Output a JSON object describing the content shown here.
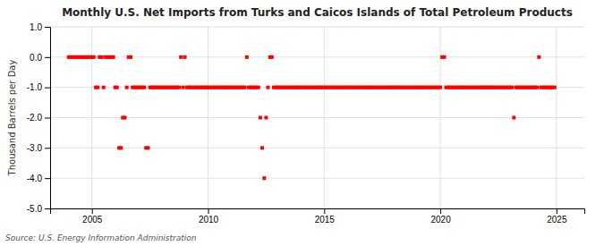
{
  "chart_data": {
    "type": "scatter",
    "title": "Monthly U.S. Net Imports from Turks and Caicos Islands of Total Petroleum Products",
    "ylabel": "Thousand Barrels per Day",
    "annotation": "Source: U.S. Energy Information Administration",
    "color": "#ff0000",
    "marker": "square",
    "grid": true,
    "xlim": [
      2003.2,
      2026.2
    ],
    "ylim": [
      -5.0,
      1.0
    ],
    "xticks": [
      2005,
      2010,
      2015,
      2020,
      2025
    ],
    "yticks": [
      {
        "value": 1.0,
        "label": "1.0"
      },
      {
        "value": 0.0,
        "label": "0.0"
      },
      {
        "value": -1.0,
        "label": "-1.0"
      },
      {
        "value": -2.0,
        "label": "-2.0"
      },
      {
        "value": -3.0,
        "label": "-3.0"
      },
      {
        "value": -4.0,
        "label": "-4.0"
      },
      {
        "value": -5.0,
        "label": "-5.0"
      }
    ],
    "x": [
      2004.0,
      2004.08,
      2004.17,
      2004.25,
      2004.33,
      2004.42,
      2004.5,
      2004.58,
      2004.67,
      2004.75,
      2004.83,
      2004.92,
      2005.0,
      2005.08,
      2005.17,
      2005.25,
      2005.33,
      2005.42,
      2005.5,
      2005.58,
      2005.67,
      2005.75,
      2005.83,
      2005.92,
      2006.0,
      2006.08,
      2006.17,
      2006.25,
      2006.33,
      2006.42,
      2006.5,
      2006.58,
      2006.67,
      2006.75,
      2006.83,
      2006.92,
      2007.0,
      2007.08,
      2007.17,
      2007.25,
      2007.33,
      2007.42,
      2007.5,
      2007.58,
      2007.67,
      2007.75,
      2007.83,
      2007.92,
      2008.0,
      2008.08,
      2008.17,
      2008.25,
      2008.33,
      2008.42,
      2008.5,
      2008.58,
      2008.67,
      2008.75,
      2008.83,
      2008.92,
      2009.0,
      2009.08,
      2009.17,
      2009.25,
      2009.33,
      2009.42,
      2009.5,
      2009.58,
      2009.67,
      2009.75,
      2009.83,
      2009.92,
      2010.0,
      2010.08,
      2010.17,
      2010.25,
      2010.33,
      2010.42,
      2010.5,
      2010.58,
      2010.67,
      2010.75,
      2010.83,
      2010.92,
      2011.0,
      2011.08,
      2011.17,
      2011.25,
      2011.33,
      2011.42,
      2011.5,
      2011.58,
      2011.67,
      2011.75,
      2011.83,
      2011.92,
      2012.0,
      2012.08,
      2012.17,
      2012.25,
      2012.33,
      2012.42,
      2012.5,
      2012.58,
      2012.67,
      2012.75,
      2012.83,
      2012.92,
      2013.0,
      2013.08,
      2013.17,
      2013.25,
      2013.33,
      2013.42,
      2013.5,
      2013.58,
      2013.67,
      2013.75,
      2013.83,
      2013.92,
      2014.0,
      2014.08,
      2014.17,
      2014.25,
      2014.33,
      2014.42,
      2014.5,
      2014.58,
      2014.67,
      2014.75,
      2014.83,
      2014.92,
      2015.0,
      2015.08,
      2015.17,
      2015.25,
      2015.33,
      2015.42,
      2015.5,
      2015.58,
      2015.67,
      2015.75,
      2015.83,
      2015.92,
      2016.0,
      2016.08,
      2016.17,
      2016.25,
      2016.33,
      2016.42,
      2016.5,
      2016.58,
      2016.67,
      2016.75,
      2016.83,
      2016.92,
      2017.0,
      2017.08,
      2017.17,
      2017.25,
      2017.33,
      2017.42,
      2017.5,
      2017.58,
      2017.67,
      2017.75,
      2017.83,
      2017.92,
      2018.0,
      2018.08,
      2018.17,
      2018.25,
      2018.33,
      2018.42,
      2018.5,
      2018.58,
      2018.67,
      2018.75,
      2018.83,
      2018.92,
      2019.0,
      2019.08,
      2019.17,
      2019.25,
      2019.33,
      2019.42,
      2019.5,
      2019.58,
      2019.67,
      2019.75,
      2019.83,
      2019.92,
      2020.0,
      2020.08,
      2020.17,
      2020.25,
      2020.33,
      2020.42,
      2020.5,
      2020.58,
      2020.67,
      2020.75,
      2020.83,
      2020.92,
      2021.0,
      2021.08,
      2021.17,
      2021.25,
      2021.33,
      2021.42,
      2021.5,
      2021.58,
      2021.67,
      2021.75,
      2021.83,
      2021.92,
      2022.0,
      2022.08,
      2022.17,
      2022.25,
      2022.33,
      2022.42,
      2022.5,
      2022.58,
      2022.67,
      2022.75,
      2022.83,
      2022.92,
      2023.0,
      2023.08,
      2023.17,
      2023.25,
      2023.33,
      2023.42,
      2023.5,
      2023.58,
      2023.67,
      2023.75,
      2023.83,
      2023.92,
      2024.0,
      2024.08,
      2024.17,
      2024.25,
      2024.33,
      2024.42,
      2024.5,
      2024.58,
      2024.67,
      2024.75,
      2024.83,
      2024.92
    ],
    "values": [
      0.0,
      0.0,
      0.0,
      0.0,
      0.0,
      0.0,
      0.0,
      0.0,
      0.0,
      0.0,
      0.0,
      0.0,
      0.0,
      0.0,
      -1.0,
      -1.0,
      0.0,
      0.0,
      -1.0,
      0.0,
      0.0,
      0.0,
      0.0,
      0.0,
      -1.0,
      -1.0,
      -3.0,
      -3.0,
      -2.0,
      -2.0,
      -1.0,
      0.0,
      0.0,
      -1.0,
      -1.0,
      -1.0,
      -1.0,
      -1.0,
      -1.0,
      -1.0,
      -3.0,
      -3.0,
      -1.0,
      -1.0,
      -1.0,
      -1.0,
      -1.0,
      -1.0,
      -1.0,
      -1.0,
      -1.0,
      -1.0,
      -1.0,
      -1.0,
      -1.0,
      -1.0,
      -1.0,
      -1.0,
      0.0,
      -1.0,
      0.0,
      -1.0,
      -1.0,
      -1.0,
      -1.0,
      -1.0,
      -1.0,
      -1.0,
      -1.0,
      -1.0,
      -1.0,
      -1.0,
      -1.0,
      -1.0,
      -1.0,
      -1.0,
      -1.0,
      -1.0,
      -1.0,
      -1.0,
      -1.0,
      -1.0,
      -1.0,
      -1.0,
      -1.0,
      -1.0,
      -1.0,
      -1.0,
      -1.0,
      -1.0,
      -1.0,
      -1.0,
      0.0,
      -1.0,
      -1.0,
      -1.0,
      -1.0,
      -1.0,
      -1.0,
      -2.0,
      -3.0,
      -4.0,
      -2.0,
      -1.0,
      0.0,
      0.0,
      -1.0,
      -1.0,
      -1.0,
      -1.0,
      -1.0,
      -1.0,
      -1.0,
      -1.0,
      -1.0,
      -1.0,
      -1.0,
      -1.0,
      -1.0,
      -1.0,
      -1.0,
      -1.0,
      -1.0,
      -1.0,
      -1.0,
      -1.0,
      -1.0,
      -1.0,
      -1.0,
      -1.0,
      -1.0,
      -1.0,
      -1.0,
      -1.0,
      -1.0,
      -1.0,
      -1.0,
      -1.0,
      -1.0,
      -1.0,
      -1.0,
      -1.0,
      -1.0,
      -1.0,
      -1.0,
      -1.0,
      -1.0,
      -1.0,
      -1.0,
      -1.0,
      -1.0,
      -1.0,
      -1.0,
      -1.0,
      -1.0,
      -1.0,
      -1.0,
      -1.0,
      -1.0,
      -1.0,
      -1.0,
      -1.0,
      -1.0,
      -1.0,
      -1.0,
      -1.0,
      -1.0,
      -1.0,
      -1.0,
      -1.0,
      -1.0,
      -1.0,
      -1.0,
      -1.0,
      -1.0,
      -1.0,
      -1.0,
      -1.0,
      -1.0,
      -1.0,
      -1.0,
      -1.0,
      -1.0,
      -1.0,
      -1.0,
      -1.0,
      -1.0,
      -1.0,
      -1.0,
      -1.0,
      -1.0,
      -1.0,
      -1.0,
      0.0,
      0.0,
      -1.0,
      -1.0,
      -1.0,
      -1.0,
      -1.0,
      -1.0,
      -1.0,
      -1.0,
      -1.0,
      -1.0,
      -1.0,
      -1.0,
      -1.0,
      -1.0,
      -1.0,
      -1.0,
      -1.0,
      -1.0,
      -1.0,
      -1.0,
      -1.0,
      -1.0,
      -1.0,
      -1.0,
      -1.0,
      -1.0,
      -1.0,
      -1.0,
      -1.0,
      -1.0,
      -1.0,
      -1.0,
      -1.0,
      -1.0,
      -1.0,
      -2.0,
      -1.0,
      -1.0,
      -1.0,
      -1.0,
      -1.0,
      -1.0,
      -1.0,
      -1.0,
      -1.0,
      -1.0,
      -1.0,
      -1.0,
      0.0,
      -1.0,
      -1.0,
      -1.0,
      -1.0,
      -1.0,
      -1.0,
      -1.0,
      -1.0
    ]
  }
}
